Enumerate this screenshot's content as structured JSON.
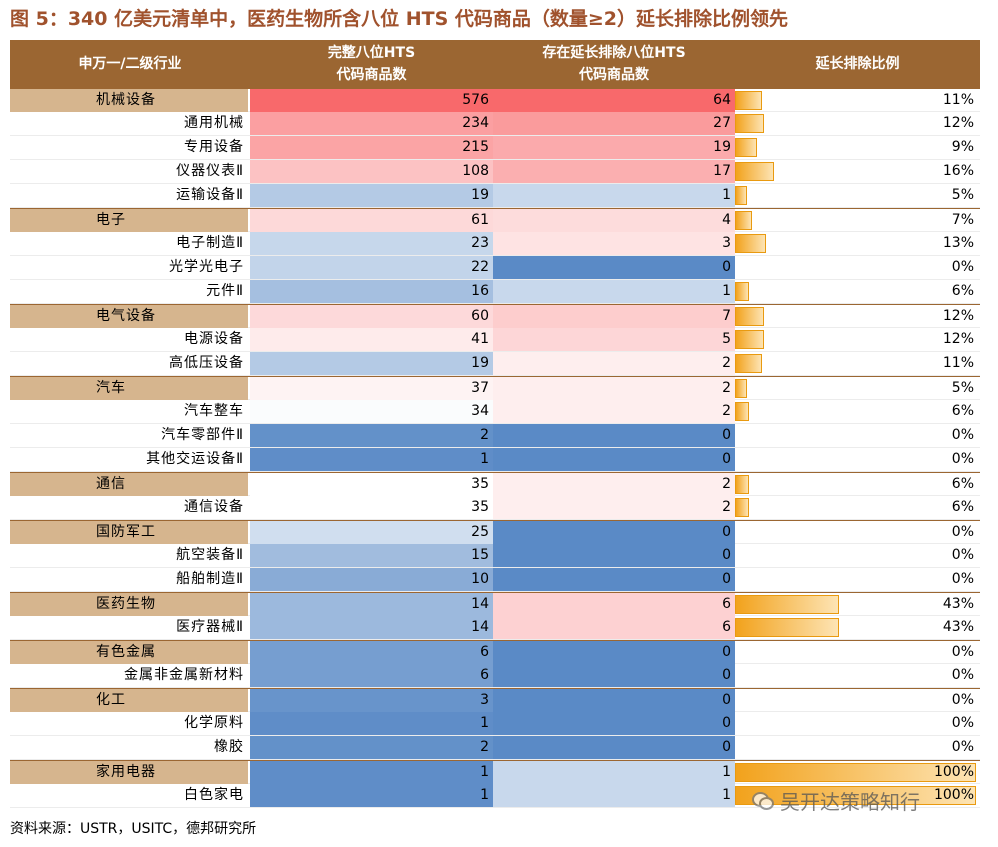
{
  "title": "图 5：340 亿美元清单中，医药生物所含八位 HTS 代码商品（数量≥2）延长排除比例领先",
  "header": {
    "col1": "申万一/二级行业",
    "col2": "完整八位HTS\n代码商品数",
    "col3": "存在延长排除八位HTS\n代码商品数",
    "col4": "延长排除比例"
  },
  "rows": [
    {
      "name": "机械设备",
      "group": true,
      "total": "576",
      "extended": "64",
      "ratio": "11%",
      "ratio_value": 11
    },
    {
      "name": "通用机械",
      "group": false,
      "total": "234",
      "extended": "27",
      "ratio": "12%",
      "ratio_value": 12
    },
    {
      "name": "专用设备",
      "group": false,
      "total": "215",
      "extended": "19",
      "ratio": "9%",
      "ratio_value": 9
    },
    {
      "name": "仪器仪表Ⅱ",
      "group": false,
      "total": "108",
      "extended": "17",
      "ratio": "16%",
      "ratio_value": 16
    },
    {
      "name": "运输设备Ⅱ",
      "group": false,
      "total": "19",
      "extended": "1",
      "ratio": "5%",
      "ratio_value": 5
    },
    {
      "name": "电子",
      "group": true,
      "total": "61",
      "extended": "4",
      "ratio": "7%",
      "ratio_value": 7
    },
    {
      "name": "电子制造Ⅱ",
      "group": false,
      "total": "23",
      "extended": "3",
      "ratio": "13%",
      "ratio_value": 13
    },
    {
      "name": "光学光电子",
      "group": false,
      "total": "22",
      "extended": "0",
      "ratio": "0%",
      "ratio_value": 0
    },
    {
      "name": "元件Ⅱ",
      "group": false,
      "total": "16",
      "extended": "1",
      "ratio": "6%",
      "ratio_value": 6
    },
    {
      "name": "电气设备",
      "group": true,
      "total": "60",
      "extended": "7",
      "ratio": "12%",
      "ratio_value": 12
    },
    {
      "name": "电源设备",
      "group": false,
      "total": "41",
      "extended": "5",
      "ratio": "12%",
      "ratio_value": 12
    },
    {
      "name": "高低压设备",
      "group": false,
      "total": "19",
      "extended": "2",
      "ratio": "11%",
      "ratio_value": 11
    },
    {
      "name": "汽车",
      "group": true,
      "total": "37",
      "extended": "2",
      "ratio": "5%",
      "ratio_value": 5
    },
    {
      "name": "汽车整车",
      "group": false,
      "total": "34",
      "extended": "2",
      "ratio": "6%",
      "ratio_value": 6
    },
    {
      "name": "汽车零部件Ⅱ",
      "group": false,
      "total": "2",
      "extended": "0",
      "ratio": "0%",
      "ratio_value": 0
    },
    {
      "name": "其他交运设备Ⅱ",
      "group": false,
      "total": "1",
      "extended": "0",
      "ratio": "0%",
      "ratio_value": 0
    },
    {
      "name": "通信",
      "group": true,
      "total": "35",
      "extended": "2",
      "ratio": "6%",
      "ratio_value": 6
    },
    {
      "name": "通信设备",
      "group": false,
      "total": "35",
      "extended": "2",
      "ratio": "6%",
      "ratio_value": 6
    },
    {
      "name": "国防军工",
      "group": true,
      "total": "25",
      "extended": "0",
      "ratio": "0%",
      "ratio_value": 0
    },
    {
      "name": "航空装备Ⅱ",
      "group": false,
      "total": "15",
      "extended": "0",
      "ratio": "0%",
      "ratio_value": 0
    },
    {
      "name": "船舶制造Ⅱ",
      "group": false,
      "total": "10",
      "extended": "0",
      "ratio": "0%",
      "ratio_value": 0
    },
    {
      "name": "医药生物",
      "group": true,
      "total": "14",
      "extended": "6",
      "ratio": "43%",
      "ratio_value": 43
    },
    {
      "name": "医疗器械Ⅱ",
      "group": false,
      "total": "14",
      "extended": "6",
      "ratio": "43%",
      "ratio_value": 43
    },
    {
      "name": "有色金属",
      "group": true,
      "total": "6",
      "extended": "0",
      "ratio": "0%",
      "ratio_value": 0
    },
    {
      "name": "金属非金属新材料",
      "group": false,
      "total": "6",
      "extended": "0",
      "ratio": "0%",
      "ratio_value": 0
    },
    {
      "name": "化工",
      "group": true,
      "total": "3",
      "extended": "0",
      "ratio": "0%",
      "ratio_value": 0
    },
    {
      "name": "化学原料",
      "group": false,
      "total": "1",
      "extended": "0",
      "ratio": "0%",
      "ratio_value": 0
    },
    {
      "name": "橡胶",
      "group": false,
      "total": "2",
      "extended": "0",
      "ratio": "0%",
      "ratio_value": 0
    },
    {
      "name": "家用电器",
      "group": true,
      "total": "1",
      "extended": "1",
      "ratio": "100%",
      "ratio_value": 100
    },
    {
      "name": "白色家电",
      "group": false,
      "total": "1",
      "extended": "1",
      "ratio": "100%",
      "ratio_value": 100
    }
  ],
  "source": "资料来源：USTR，USITC，德邦研究所",
  "watermark": "吴开达策略知行",
  "colors": {
    "header_bg": "#9b6632",
    "group_bg": "#d6b58e",
    "title": "#a0522d",
    "scale_high": "#f8696b",
    "scale_mid": "#ffffff",
    "scale_low": "#5a8ac6",
    "bar": "#f2a21c"
  }
}
